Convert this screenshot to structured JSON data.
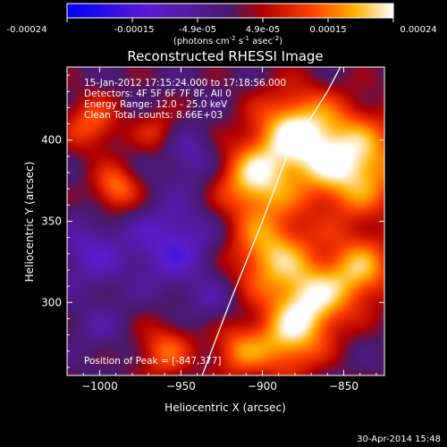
{
  "colorbar": {
    "tick_labels": [
      "-0.00024",
      "-0.00015",
      "-4.9e-05",
      "4.9e-05",
      "0.00015",
      "0.00024"
    ],
    "unit_prefix": "(photons cm",
    "unit_exp1": "-2",
    "unit_mid": " s",
    "unit_exp2": "-1",
    "unit_suffix": " asec",
    "unit_exp3": "-2",
    "unit_close": ")"
  },
  "chart_data": {
    "type": "heatmap",
    "title": "Reconstructed RHESSI Image",
    "xlabel": "Heliocentric X (arcsec)",
    "ylabel": "Heliocentric Y (arcsec)",
    "xlim": [
      -1020,
      -825
    ],
    "ylim": [
      255,
      445
    ],
    "x_ticks": [
      -1000,
      -950,
      -900,
      -850
    ],
    "y_ticks": [
      300,
      350,
      400
    ],
    "x_tick_labels": [
      "−1000",
      "−950",
      "−900",
      "−850"
    ],
    "y_tick_labels": [
      "300",
      "350",
      "400"
    ],
    "color_range": [
      -0.00024,
      0.00024
    ],
    "annotations": [
      "15-Jan-2012 17:15:24.000 to 17:18:56.000",
      "Detectors: 4F 5F 6F 7F 8F, All 0",
      "Energy Range: 12.0 - 25.0 keV",
      "Clean     Total counts: 8.66E+03"
    ],
    "peak_label": "Position of Peak = [-847,377]",
    "peak": [
      -847,
      377
    ],
    "limb_line": [
      [
        -937,
        255
      ],
      [
        -920,
        300
      ],
      [
        -900,
        350
      ],
      [
        -885,
        390
      ],
      [
        -860,
        430
      ],
      [
        -852,
        445
      ]
    ],
    "blobs": [
      {
        "x": -845,
        "y": 385,
        "a": 1.0,
        "s": 22
      },
      {
        "x": -880,
        "y": 405,
        "a": 0.9,
        "s": 18
      },
      {
        "x": -905,
        "y": 375,
        "a": 0.85,
        "s": 16
      },
      {
        "x": -895,
        "y": 330,
        "a": 0.8,
        "s": 18
      },
      {
        "x": -870,
        "y": 300,
        "a": 0.85,
        "s": 16
      },
      {
        "x": -840,
        "y": 320,
        "a": 0.75,
        "s": 15
      },
      {
        "x": -885,
        "y": 275,
        "a": 0.7,
        "s": 15
      },
      {
        "x": -960,
        "y": 270,
        "a": 0.55,
        "s": 12
      },
      {
        "x": -1005,
        "y": 410,
        "a": 0.55,
        "s": 12
      },
      {
        "x": -990,
        "y": 370,
        "a": 0.65,
        "s": 10
      },
      {
        "x": -965,
        "y": 405,
        "a": 0.35,
        "s": 10
      },
      {
        "x": -915,
        "y": 270,
        "a": 0.55,
        "s": 12
      },
      {
        "x": -955,
        "y": 335,
        "a": -0.55,
        "s": 18
      },
      {
        "x": -1005,
        "y": 330,
        "a": -0.4,
        "s": 15
      },
      {
        "x": -945,
        "y": 390,
        "a": -0.35,
        "s": 12
      },
      {
        "x": -1000,
        "y": 285,
        "a": -0.2,
        "s": 12
      },
      {
        "x": -930,
        "y": 300,
        "a": -0.25,
        "s": 10
      }
    ]
  },
  "footer": {
    "timestamp": "30-Apr-2014 15:48"
  }
}
